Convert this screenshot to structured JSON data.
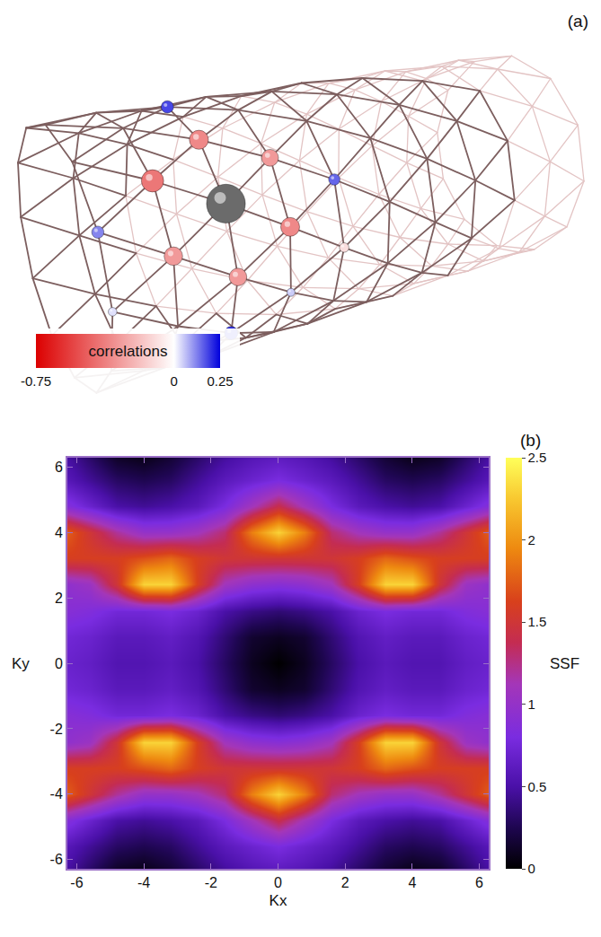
{
  "diagram": {
    "label": "(a)",
    "type": "lattice",
    "colorbar": {
      "title": "correlations",
      "range": [
        -0.75,
        0.25
      ],
      "ticks": [
        -0.75,
        0,
        0.25
      ]
    },
    "reference": {
      "ring": 2,
      "site": 1
    },
    "sites": [
      {
        "ring": 2,
        "site": 0,
        "correlation": -0.35
      },
      {
        "ring": 2,
        "site": 2,
        "correlation": -0.3
      },
      {
        "ring": 1,
        "site": 1,
        "correlation": -0.4
      },
      {
        "ring": 1,
        "site": 2,
        "correlation": -0.3
      },
      {
        "ring": 3,
        "site": 1,
        "correlation": -0.35
      },
      {
        "ring": 3,
        "site": 0,
        "correlation": -0.3
      },
      {
        "ring": 2,
        "site": 3,
        "correlation": 0.2
      },
      {
        "ring": 4,
        "site": 0,
        "correlation": 0.15
      },
      {
        "ring": 3,
        "site": 2,
        "correlation": 0.05
      },
      {
        "ring": 2,
        "site": 11,
        "correlation": 0.18
      },
      {
        "ring": 0,
        "site": 2,
        "correlation": 0.12
      },
      {
        "ring": 4,
        "site": 1,
        "correlation": -0.1
      },
      {
        "ring": 0,
        "site": 3,
        "correlation": 0.03
      }
    ]
  },
  "chart_data": {
    "type": "heatmap",
    "label": "(b)",
    "xlabel": "Kx",
    "ylabel": "Ky",
    "x": [
      -6.4,
      -5.6,
      -4.8,
      -4,
      -3.2,
      -2.4,
      -1.6,
      -0.8,
      0,
      0.8,
      1.6,
      2.4,
      3.2,
      4,
      4.8,
      5.6,
      6.4
    ],
    "y": [
      -6.4,
      -5.6,
      -4.8,
      -4,
      -3.2,
      -2.4,
      -1.6,
      -0.8,
      0,
      0.8,
      1.6,
      2.4,
      3.2,
      4,
      4.8,
      5.6,
      6.4
    ],
    "z": [
      [
        0.5,
        0.3,
        0.1,
        0.05,
        0.15,
        0.3,
        0.45,
        0.55,
        0.6,
        0.55,
        0.45,
        0.3,
        0.15,
        0.05,
        0.1,
        0.3,
        0.5
      ],
      [
        0.6,
        0.45,
        0.3,
        0.25,
        0.3,
        0.45,
        0.6,
        0.7,
        0.8,
        0.7,
        0.6,
        0.45,
        0.3,
        0.25,
        0.3,
        0.45,
        0.6
      ],
      [
        0.9,
        0.7,
        0.5,
        0.45,
        0.5,
        0.6,
        0.8,
        1.1,
        1.4,
        1.1,
        0.8,
        0.6,
        0.5,
        0.45,
        0.5,
        0.7,
        0.9
      ],
      [
        1.8,
        1.5,
        1.2,
        1.0,
        1.0,
        1.1,
        1.3,
        1.9,
        2.3,
        1.9,
        1.3,
        1.1,
        1.0,
        1.0,
        1.2,
        1.5,
        1.8
      ],
      [
        1.6,
        1.6,
        1.6,
        1.7,
        1.8,
        1.6,
        1.5,
        1.5,
        1.5,
        1.5,
        1.5,
        1.6,
        1.8,
        1.7,
        1.6,
        1.6,
        1.6
      ],
      [
        0.95,
        1.05,
        1.5,
        2.3,
        2.3,
        1.6,
        1.1,
        0.95,
        0.9,
        0.95,
        1.1,
        1.6,
        2.3,
        2.3,
        1.5,
        1.05,
        0.95
      ],
      [
        0.9,
        0.85,
        0.75,
        0.75,
        0.8,
        0.7,
        0.5,
        0.4,
        0.35,
        0.4,
        0.5,
        0.7,
        0.8,
        0.75,
        0.75,
        0.85,
        0.9
      ],
      [
        0.75,
        0.7,
        0.6,
        0.6,
        0.65,
        0.55,
        0.35,
        0.15,
        0.1,
        0.15,
        0.35,
        0.55,
        0.65,
        0.6,
        0.6,
        0.7,
        0.75
      ],
      [
        0.7,
        0.65,
        0.55,
        0.55,
        0.6,
        0.5,
        0.3,
        0.1,
        0.0,
        0.1,
        0.3,
        0.5,
        0.6,
        0.55,
        0.55,
        0.65,
        0.7
      ],
      [
        0.75,
        0.7,
        0.6,
        0.6,
        0.65,
        0.55,
        0.35,
        0.15,
        0.1,
        0.15,
        0.35,
        0.55,
        0.65,
        0.6,
        0.6,
        0.7,
        0.75
      ],
      [
        0.9,
        0.85,
        0.75,
        0.75,
        0.8,
        0.7,
        0.5,
        0.4,
        0.35,
        0.4,
        0.5,
        0.7,
        0.8,
        0.75,
        0.75,
        0.85,
        0.9
      ],
      [
        0.95,
        1.05,
        1.5,
        2.3,
        2.3,
        1.6,
        1.1,
        0.95,
        0.9,
        0.95,
        1.1,
        1.6,
        2.3,
        2.3,
        1.5,
        1.05,
        0.95
      ],
      [
        1.6,
        1.6,
        1.6,
        1.7,
        1.8,
        1.6,
        1.5,
        1.5,
        1.5,
        1.5,
        1.5,
        1.6,
        1.8,
        1.7,
        1.6,
        1.6,
        1.6
      ],
      [
        1.8,
        1.5,
        1.2,
        1.0,
        1.0,
        1.1,
        1.3,
        1.9,
        2.3,
        1.9,
        1.3,
        1.1,
        1.0,
        1.0,
        1.2,
        1.5,
        1.8
      ],
      [
        0.9,
        0.7,
        0.5,
        0.45,
        0.5,
        0.6,
        0.8,
        1.1,
        1.4,
        1.1,
        0.8,
        0.6,
        0.5,
        0.45,
        0.5,
        0.7,
        0.9
      ],
      [
        0.6,
        0.45,
        0.3,
        0.25,
        0.3,
        0.45,
        0.6,
        0.7,
        0.8,
        0.7,
        0.6,
        0.45,
        0.3,
        0.25,
        0.3,
        0.45,
        0.6
      ],
      [
        0.5,
        0.3,
        0.1,
        0.05,
        0.15,
        0.3,
        0.45,
        0.55,
        0.6,
        0.55,
        0.45,
        0.3,
        0.15,
        0.05,
        0.1,
        0.3,
        0.5
      ]
    ],
    "xlim": [
      -6.28,
      6.28
    ],
    "ylim": [
      -6.28,
      6.28
    ],
    "xticks": [
      -6,
      -4,
      -2,
      0,
      2,
      4,
      6
    ],
    "yticks": [
      -6,
      -4,
      -2,
      0,
      2,
      4,
      6
    ],
    "colorbar": {
      "title": "SSF",
      "range": [
        0,
        2.5
      ],
      "ticks": [
        0,
        0.5,
        1,
        1.5,
        2,
        2.5
      ]
    }
  }
}
